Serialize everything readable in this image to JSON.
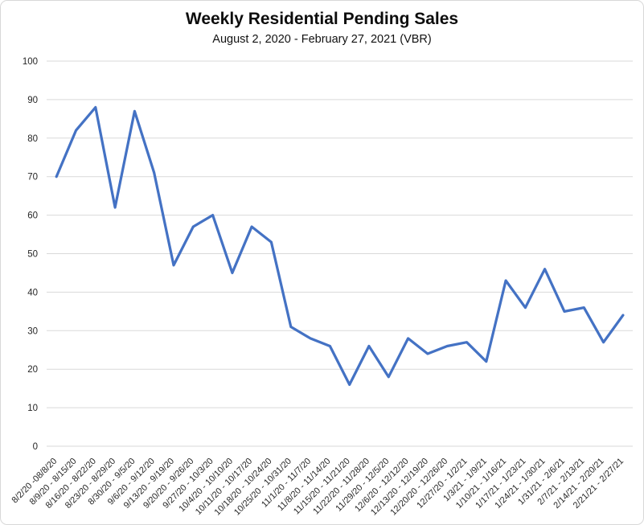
{
  "chart_data": {
    "type": "line",
    "title": "Weekly Residential Pending Sales",
    "subtitle": "August 2, 2020 - February 27, 2021 (VBR)",
    "categories": [
      "8/2/20 -08/8/20",
      "8/9/20 - 8/15/20",
      "8/16/20 - 8/22/20",
      "8/23/20 - 8/29/20",
      "8/30/20 - 9/5/20",
      "9/6/20 - 9/12/20",
      "9/13/20 - 9/19/20",
      "9/20/20 - 9/26/20",
      "9/27/20 - 10/3/20",
      "10/4/20 - 10/10/20",
      "10/11/20 - 10/17/20",
      "10/18/20 - 10/24/20",
      "10/25/20 - 10/31/20",
      "11/1/20 - 11/7/20",
      "11/8/20 - 11/14/20",
      "11/15/20 - 11/21/20",
      "11/22/20 - 11/28/20",
      "11/29/20 - 12/5/20",
      "12/6/20 - 12/12/20",
      "12/13/20 - 12/19/20",
      "12/20/20 - 12/26/20",
      "12/27/20 - 1/2/21",
      "1/3/21 - 1/9/21",
      "1/10/21 - 1/16/21",
      "1/17/21 - 1/23/21",
      "1/24/21 - 1/30/21",
      "1/31/21 - 2/6/21",
      "2/7/21 - 2/13/21",
      "2/14/21 - 2/20/21",
      "2/21/21 - 2/27/21"
    ],
    "values": [
      70,
      82,
      88,
      62,
      87,
      71,
      47,
      57,
      60,
      45,
      57,
      53,
      31,
      28,
      26,
      16,
      26,
      18,
      28,
      24,
      26,
      27,
      22,
      43,
      36,
      46,
      35,
      36,
      27,
      34
    ],
    "xlabel": "",
    "ylabel": "",
    "ylim": [
      0,
      100
    ],
    "ytick_interval": 10,
    "grid": true,
    "legend": false,
    "line_color": "#4472C4",
    "gridline_color": "#D9D9D9",
    "axis_text_color": "#262626",
    "frame_border_color": "#D8D8D8"
  }
}
